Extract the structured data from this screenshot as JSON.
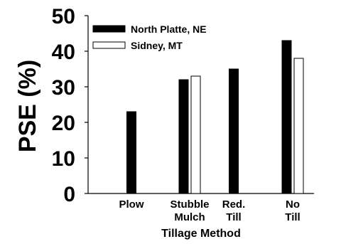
{
  "chart_data": {
    "type": "bar",
    "ylabel": "PSE (%)",
    "xlabel": "Tillage Method",
    "ylim": [
      0,
      50
    ],
    "yticks": [
      0,
      10,
      20,
      30,
      40,
      50
    ],
    "categories": [
      [
        "Plow"
      ],
      [
        "Stubble",
        "Mulch"
      ],
      [
        "Red.",
        "Till"
      ],
      [
        "No",
        "Till"
      ]
    ],
    "series": [
      {
        "name": "North Platte, NE",
        "color": "#000000",
        "values": [
          23,
          32,
          35,
          43
        ]
      },
      {
        "name": "Sidney, MT",
        "color": "#ffffff",
        "values": [
          null,
          33,
          null,
          38
        ]
      }
    ],
    "legend_position": "top-left",
    "grid": false
  }
}
